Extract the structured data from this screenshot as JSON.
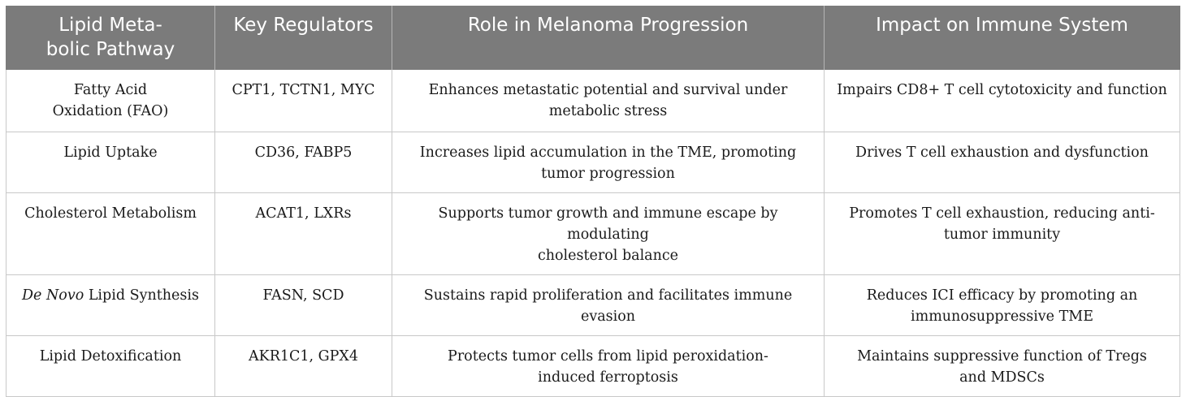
{
  "table": {
    "headers": [
      "Lipid Meta-\nbolic Pathway",
      "Key Regulators",
      "Role in Melanoma Progression",
      "Impact on Immune System"
    ],
    "rows": [
      {
        "pathway": "Fatty Acid\nOxidation (FAO)",
        "regulators": "CPT1, TCTN1, MYC",
        "role": "Enhances metastatic potential and survival under\nmetabolic stress",
        "impact": "Impairs CD8+ T cell cytotoxicity and function"
      },
      {
        "pathway": "Lipid Uptake",
        "regulators": "CD36, FABP5",
        "role": "Increases lipid accumulation in the TME, promoting\ntumor progression",
        "impact": "Drives T cell exhaustion and dysfunction"
      },
      {
        "pathway": "Cholesterol Metabolism",
        "regulators": "ACAT1, LXRs",
        "role": "Supports tumor growth and immune escape by modulating\ncholesterol balance",
        "impact": "Promotes T cell exhaustion, reducing anti-\ntumor immunity"
      },
      {
        "pathway_italic": "De Novo",
        "pathway_rest": " Lipid Synthesis",
        "regulators": "FASN, SCD",
        "role": "Sustains rapid proliferation and facilitates immune evasion",
        "impact": "Reduces ICI efficacy by promoting an\nimmunosuppressive TME"
      },
      {
        "pathway": "Lipid Detoxification",
        "regulators": "AKR1C1, GPX4",
        "role": "Protects tumor cells from lipid peroxidation-\ninduced ferroptosis",
        "impact": "Maintains suppressive function of Tregs\nand MDSCs"
      }
    ]
  }
}
